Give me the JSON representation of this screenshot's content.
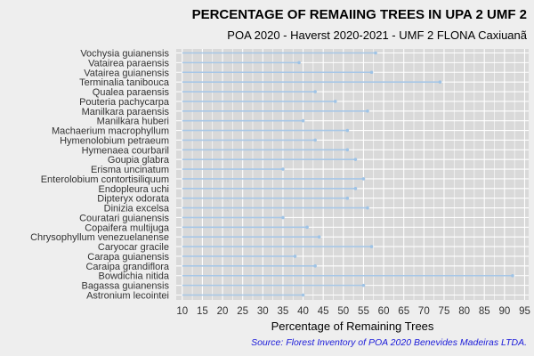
{
  "chart_data": {
    "type": "lollipop",
    "title": "PERCENTAGE OF REMAIING TREES IN UPA 2 UMF 2",
    "subtitle": "POA 2020 - Haverst 2020-2021 - UMF 2 FLONA Caxiuanã",
    "xlabel": "Percentage of Remaining Trees",
    "ylabel": "",
    "caption": "Source: Florest Inventory of POA 2020 Benevides Madeiras LTDA.",
    "xlim": [
      8.5,
      96
    ],
    "x_ticks": [
      10,
      15,
      20,
      25,
      30,
      35,
      40,
      45,
      50,
      55,
      60,
      65,
      70,
      75,
      80,
      85,
      90,
      95
    ],
    "baseline": 10,
    "grid": true,
    "colors": {
      "background": "#eeeeee",
      "panel": "#d9d9d9",
      "gridline": "#ffffff",
      "segment": "#a7c7e7",
      "point": "#9ec3e6",
      "caption": "#1a1ad9"
    },
    "categories": [
      "Vochysia guianensis",
      "Vatairea paraensis",
      "Vatairea guianensis",
      "Terminalia tanibouca",
      "Qualea paraensis",
      "Pouteria pachycarpa",
      "Manilkara paraensis",
      "Manilkara huberi",
      "Machaerium macrophyllum",
      "Hymenolobium petraeum",
      "Hymenaea courbaril",
      "Goupia glabra",
      "Erisma uncinatum",
      "Enterolobium contortisiliquum",
      "Endopleura uchi",
      "Dipteryx odorata",
      "Dinizia excelsa",
      "Couratari guianensis",
      "Copaifera multijuga",
      "Chrysophyllum venezuelanense",
      "Caryocar gracile",
      "Carapa guianensis",
      "Caraipa grandiflora",
      "Bowdichia nitida",
      "Bagassa guianensis",
      "Astronium lecointei"
    ],
    "values": [
      58,
      39,
      57,
      74,
      43,
      48,
      56,
      40,
      51,
      43,
      51,
      53,
      35,
      55,
      53,
      51,
      56,
      35,
      41,
      44,
      57,
      38,
      43,
      92,
      55,
      40
    ]
  }
}
